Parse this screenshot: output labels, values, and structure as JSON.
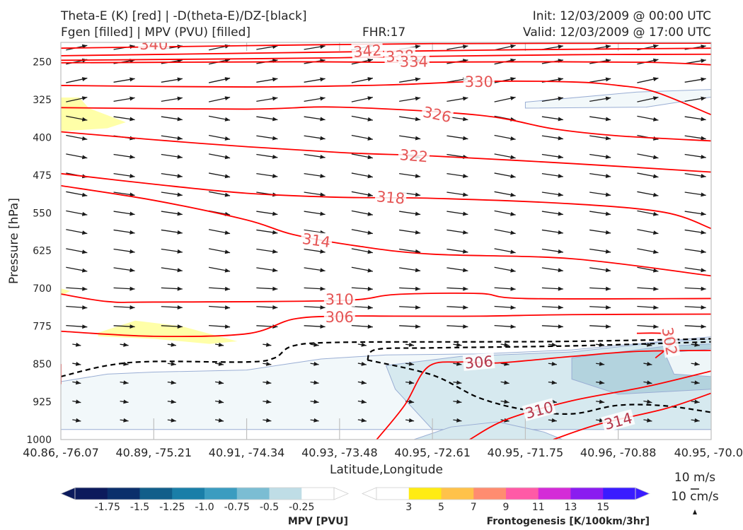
{
  "header": {
    "title_line1": "Theta-E (K) [red] | -D(theta-E)/DZ-[black]",
    "title_line2": "Fgen [filled] | MPV (PVU) [filled]",
    "fhr": "FHR:17",
    "init": "Init: 12/03/2009 @ 00:00 UTC",
    "valid": "Valid: 12/03/2009 @ 17:00 UTC"
  },
  "chart_data": {
    "type": "cross-section",
    "xlabel": "Latitude,Longitude",
    "ylabel": "Pressure [hPa]",
    "ylim": [
      1000,
      200
    ],
    "x_ticks": [
      "40.86, -76.07",
      "40.89, -75.21",
      "40.91, -74.34",
      "40.93, -73.48",
      "40.95, -72.61",
      "40.95, -71.75",
      "40.96, -70.88",
      "40.95, -70.0"
    ],
    "y_ticks": [
      250,
      325,
      400,
      475,
      550,
      625,
      700,
      775,
      850,
      925,
      1000
    ],
    "theta_e_contours": [
      {
        "level": 340,
        "label": "340",
        "pts": [
          [
            0.0,
            223
          ],
          [
            2.0,
            218
          ],
          [
            4.0,
            214
          ],
          [
            7.0,
            213
          ]
        ]
      },
      {
        "level": 342,
        "label": "342",
        "pts": [
          [
            0.0,
            238
          ],
          [
            2.0,
            233
          ],
          [
            3.2,
            230
          ],
          [
            5.0,
            226
          ],
          [
            7.0,
            223
          ]
        ]
      },
      {
        "level": 338,
        "label": "338",
        "pts": [
          [
            0.0,
            247
          ],
          [
            2.0,
            244
          ],
          [
            3.0,
            242
          ],
          [
            3.6,
            240
          ],
          [
            5.5,
            236
          ],
          [
            7.0,
            235
          ]
        ]
      },
      {
        "level": 334,
        "label": "334",
        "pts": [
          [
            0.0,
            252
          ],
          [
            2.5,
            250
          ],
          [
            3.6,
            251
          ],
          [
            5.0,
            250
          ],
          [
            6.3,
            251
          ],
          [
            7.0,
            256
          ]
        ]
      },
      {
        "level": 330,
        "label": "330",
        "pts": [
          [
            0.0,
            297
          ],
          [
            2.0,
            300
          ],
          [
            3.5,
            296
          ],
          [
            4.5,
            289
          ],
          [
            5.5,
            290
          ],
          [
            6.0,
            297
          ],
          [
            6.4,
            310
          ],
          [
            7.0,
            355
          ]
        ]
      },
      {
        "level": 326,
        "label": "326",
        "pts": [
          [
            0.0,
            341
          ],
          [
            2.0,
            344
          ],
          [
            3.0,
            340
          ],
          [
            4.5,
            356
          ],
          [
            5.3,
            383
          ],
          [
            6.0,
            397
          ],
          [
            7.0,
            407
          ]
        ]
      },
      {
        "level": 322,
        "label": "322",
        "pts": [
          [
            0.0,
            389
          ],
          [
            1.5,
            412
          ],
          [
            3.0,
            430
          ],
          [
            4.0,
            437
          ],
          [
            5.5,
            452
          ],
          [
            7.0,
            469
          ]
        ]
      },
      {
        "level": 318,
        "label": "318",
        "pts": [
          [
            0.0,
            472
          ],
          [
            1.0,
            493
          ],
          [
            2.0,
            511
          ],
          [
            3.0,
            519
          ],
          [
            4.0,
            521
          ],
          [
            5.5,
            532
          ],
          [
            6.5,
            549
          ],
          [
            7.0,
            581
          ]
        ]
      },
      {
        "level": 314,
        "label": "314",
        "pts": [
          [
            0.0,
            496
          ],
          [
            1.0,
            525
          ],
          [
            2.0,
            564
          ],
          [
            2.5,
            593
          ],
          [
            3.2,
            616
          ],
          [
            4.0,
            632
          ],
          [
            5.5,
            641
          ],
          [
            7.0,
            675
          ]
        ]
      },
      {
        "level": 310,
        "label": "310",
        "pts": [
          [
            0.0,
            711
          ],
          [
            0.5,
            726
          ],
          [
            1.0,
            727
          ],
          [
            3.0,
            724
          ],
          [
            3.6,
            712
          ],
          [
            4.5,
            710
          ],
          [
            5.0,
            720
          ],
          [
            7.0,
            720
          ]
        ]
      },
      {
        "level": 306,
        "label": "306",
        "pts": [
          [
            0.0,
            785
          ],
          [
            1.0,
            795
          ],
          [
            2.0,
            790
          ],
          [
            2.5,
            761
          ],
          [
            3.0,
            755
          ],
          [
            3.6,
            755
          ],
          [
            4.5,
            755
          ],
          [
            5.5,
            752
          ],
          [
            7.0,
            751
          ]
        ]
      },
      {
        "level": 302,
        "label": "302",
        "pts": [
          [
            6.2,
            789
          ],
          [
            6.5,
            790
          ],
          [
            6.6,
            805
          ],
          [
            6.4,
            838
          ]
        ]
      },
      {
        "level": 306,
        "label": "306",
        "pts": [
          [
            3.4,
            1000
          ],
          [
            3.7,
            932
          ],
          [
            3.95,
            856
          ],
          [
            4.3,
            846
          ],
          [
            4.7,
            848
          ],
          [
            5.5,
            835
          ],
          [
            6.2,
            825
          ],
          [
            7.0,
            823
          ]
        ]
      },
      {
        "level": 310,
        "label": "310",
        "pts": [
          [
            4.4,
            1000
          ],
          [
            4.8,
            960
          ],
          [
            5.5,
            923
          ],
          [
            6.3,
            895
          ],
          [
            7.0,
            864
          ]
        ]
      },
      {
        "level": 314,
        "label": "314",
        "pts": [
          [
            5.3,
            1000
          ],
          [
            5.8,
            969
          ],
          [
            6.5,
            939
          ],
          [
            7.0,
            908
          ]
        ]
      },
      {
        "level": 302,
        "label": "",
        "pts": [
          [
            0.0,
            850
          ],
          [
            0.0,
            890
          ]
        ]
      }
    ],
    "stability_contour": [
      [
        0.0,
        875
      ],
      [
        0.5,
        853
      ],
      [
        1.0,
        845
      ],
      [
        2.0,
        846
      ],
      [
        2.3,
        838
      ],
      [
        2.5,
        814
      ],
      [
        3.0,
        807
      ],
      [
        4.5,
        806
      ],
      [
        5.5,
        805
      ],
      [
        7.0,
        800
      ]
    ],
    "stability_contour2": [
      [
        3.3,
        842
      ],
      [
        3.4,
        821
      ],
      [
        4.0,
        818
      ],
      [
        5.5,
        814
      ],
      [
        7.0,
        806
      ]
    ],
    "stability_contour3": [
      [
        3.3,
        842
      ],
      [
        4.0,
        872
      ],
      [
        4.5,
        917
      ],
      [
        5.0,
        941
      ],
      [
        5.5,
        949
      ],
      [
        6.0,
        932
      ],
      [
        6.5,
        933
      ],
      [
        7.0,
        946
      ]
    ],
    "fgen_fill": [
      {
        "value": 3,
        "pts": [
          [
            0.0,
            321
          ],
          [
            0.2,
            321
          ],
          [
            0.3,
            342
          ],
          [
            0.7,
            370
          ],
          [
            0.5,
            382
          ],
          [
            0.0,
            388
          ]
        ]
      },
      {
        "value": 3,
        "pts": [
          [
            0.4,
            788
          ],
          [
            0.8,
            764
          ],
          [
            1.3,
            775
          ],
          [
            1.9,
            805
          ],
          [
            1.6,
            810
          ],
          [
            1.0,
            800
          ],
          [
            0.4,
            795
          ]
        ]
      },
      {
        "value": 3,
        "pts": [
          [
            0.0,
            700
          ],
          [
            0.1,
            705
          ],
          [
            0.0,
            715
          ]
        ]
      }
    ],
    "mpv_fill": [
      {
        "value": -0.25,
        "pts": [
          [
            0.0,
            885
          ],
          [
            0.5,
            870
          ],
          [
            1.0,
            866
          ],
          [
            2.0,
            862
          ],
          [
            2.8,
            840
          ],
          [
            3.5,
            832
          ],
          [
            4.5,
            830
          ],
          [
            5.5,
            822
          ],
          [
            7.0,
            796
          ],
          [
            7.0,
            980
          ],
          [
            0.0,
            980
          ]
        ]
      },
      {
        "value": -0.5,
        "pts": [
          [
            3.5,
            853
          ],
          [
            4.3,
            835
          ],
          [
            5.5,
            826
          ],
          [
            6.5,
            806
          ],
          [
            7.0,
            800
          ],
          [
            7.0,
            980
          ],
          [
            4.0,
            980
          ],
          [
            3.6,
            900
          ]
        ]
      },
      {
        "value": -0.75,
        "pts": [
          [
            5.5,
            838
          ],
          [
            6.5,
            815
          ],
          [
            7.0,
            810
          ],
          [
            7.0,
            900
          ],
          [
            6.0,
            910
          ],
          [
            5.5,
            880
          ]
        ]
      },
      {
        "value": -1.0,
        "pts": [
          [
            6.5,
            828
          ],
          [
            7.0,
            820
          ],
          [
            7.0,
            875
          ],
          [
            6.6,
            870
          ]
        ]
      },
      {
        "value": -0.25,
        "pts": [
          [
            5.0,
            330
          ],
          [
            6.2,
            310
          ],
          [
            7.0,
            305
          ],
          [
            7.0,
            320
          ],
          [
            6.3,
            340
          ],
          [
            5.0,
            342
          ]
        ]
      },
      {
        "value": -0.5,
        "pts": [
          [
            3.8,
            1000
          ],
          [
            4.2,
            975
          ],
          [
            4.7,
            965
          ],
          [
            5.2,
            985
          ],
          [
            5.4,
            1000
          ]
        ]
      }
    ],
    "wind_scale": {
      "label_top": "10 m/s",
      "label_bottom": "10 cm/s"
    },
    "colorbars": [
      {
        "name": "MPV [PVU]",
        "ticks": [
          "-1.75",
          "-1.5",
          "-1.25",
          "-1.0",
          "-0.75",
          "-0.5",
          "-0.25"
        ],
        "colors": [
          "#0c1a5c",
          "#0b2f6b",
          "#115e8a",
          "#1a7ea8",
          "#3b9cc0",
          "#7bbdd3",
          "#bfdde6",
          "#ffffff"
        ]
      },
      {
        "name": "Frontogenesis [K/100km/3hr]",
        "ticks": [
          "3",
          "5",
          "7",
          "9",
          "11",
          "13",
          "15"
        ],
        "colors": [
          "#ffffff",
          "#ffec13",
          "#ffc24a",
          "#ff8c70",
          "#ff5aa6",
          "#d42bd7",
          "#8a1cf0",
          "#3a1cff"
        ]
      }
    ],
    "colors": {
      "theta_e": "#ff0000",
      "label": "#e55555",
      "stability": "#000000",
      "wind": "#1a1a1a",
      "axis": "#bfbfbf"
    }
  }
}
